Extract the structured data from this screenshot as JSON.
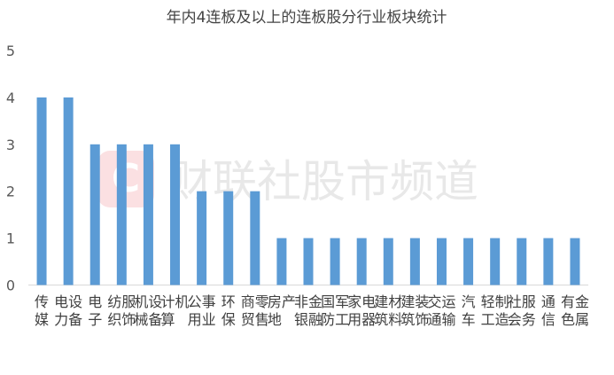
{
  "chart_data": {
    "type": "bar",
    "title": "年内4连板及以上的连板股分行业板块统计",
    "xlabel": "",
    "ylabel": "",
    "ylim": [
      0,
      5
    ],
    "yticks": [
      0,
      1,
      2,
      3,
      4,
      5
    ],
    "grid": false,
    "legend": "none",
    "bar_color": "#5b9bd5",
    "categories": [
      "传媒",
      "电力设备",
      "电子",
      "纺织服饰",
      "机械设备",
      "计算机",
      "公用事业",
      "环保",
      "商贸零售",
      "房地产",
      "非银金融",
      "国防军工",
      "家用电器",
      "建筑材料",
      "建筑装饰",
      "交通运输",
      "汽车",
      "轻工制造",
      "社会服务",
      "通信",
      "有色金属"
    ],
    "values": [
      4,
      4,
      3,
      3,
      3,
      3,
      2,
      2,
      2,
      1,
      1,
      1,
      1,
      1,
      1,
      1,
      1,
      1,
      1,
      1,
      1
    ]
  },
  "watermark": {
    "text": "财联社股市频道",
    "logo_letter": "C",
    "logo_color": "#e8434f"
  }
}
